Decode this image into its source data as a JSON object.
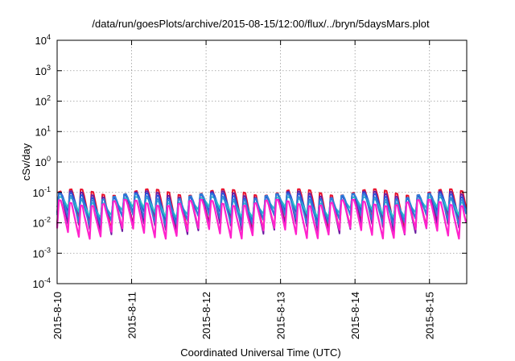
{
  "chart_data": {
    "type": "line",
    "title": "/data/run/goesPlots/archive/2015-08-15/12:00/flux/../bryn/5daysMars.plot",
    "xlabel": "Coordinated Universal Time (UTC)",
    "ylabel": "cSv/day",
    "y_scale": "log",
    "ylim": [
      0.0001,
      10000
    ],
    "y_ticks": [
      {
        "base": "10",
        "exp": "-4",
        "value": 0.0001
      },
      {
        "base": "10",
        "exp": "-3",
        "value": 0.001
      },
      {
        "base": "10",
        "exp": "-2",
        "value": 0.01
      },
      {
        "base": "10",
        "exp": "-1",
        "value": 0.1
      },
      {
        "base": "10",
        "exp": "0",
        "value": 1
      },
      {
        "base": "10",
        "exp": "1",
        "value": 10
      },
      {
        "base": "10",
        "exp": "2",
        "value": 100
      },
      {
        "base": "10",
        "exp": "3",
        "value": 1000
      },
      {
        "base": "10",
        "exp": "4",
        "value": 10000
      }
    ],
    "xlim": [
      "2015-08-10T00:00",
      "2015-08-15T12:00"
    ],
    "x_ticks": [
      "2015-8-10",
      "2015-8-11",
      "2015-8-12",
      "2015-8-13",
      "2015-8-14",
      "2015-8-15"
    ],
    "x_tick_dates": [
      "2015-08-10",
      "2015-08-11",
      "2015-08-12",
      "2015-08-13",
      "2015-08-14",
      "2015-08-15"
    ],
    "grid": true,
    "legend": "none",
    "series": [
      {
        "color": "#e8112d",
        "peak": 0.1,
        "trough": 0.0085
      },
      {
        "color": "#6b1fa0",
        "peak": 0.085,
        "trough": 0.0062
      },
      {
        "color": "#2a4fd6",
        "peak": 0.075,
        "trough": 0.016
      },
      {
        "color": "#27c7c7",
        "peak": 0.055,
        "trough": 0.022
      },
      {
        "color": "#2f7fd8",
        "peak": 0.07,
        "trough": 0.012
      },
      {
        "color": "#ff22cc",
        "peak": 0.045,
        "trough": 0.0045
      }
    ],
    "approx_cycle_hours": 3.5
  }
}
